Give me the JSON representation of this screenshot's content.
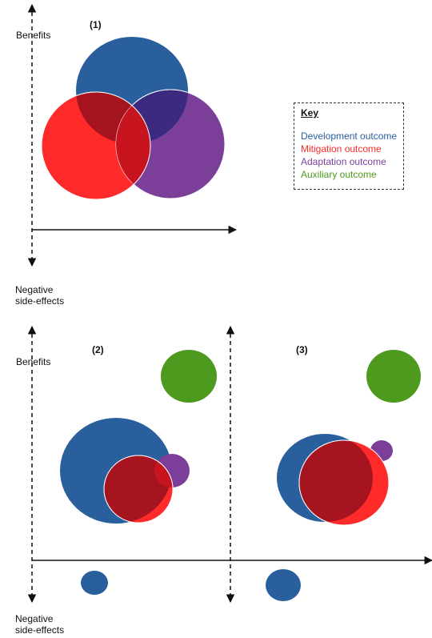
{
  "labels": {
    "benefits": "Benefits",
    "negative_line1": "Negative",
    "negative_line2": "side-effects"
  },
  "panels": {
    "p1": "(1)",
    "p2": "(2)",
    "p3": "(3)"
  },
  "key": {
    "title": "Key",
    "items": [
      {
        "label": "Development outcome",
        "color": "#2a5f9e"
      },
      {
        "label": "Mitigation outcome",
        "color": "#ff2a2a"
      },
      {
        "label": "Adaptation outcome",
        "color": "#7b3f99"
      },
      {
        "label": "Auxiliary outcome",
        "color": "#4e9a1f"
      }
    ]
  },
  "colors": {
    "development": "#2a5f9e",
    "mitigation": "#ff2a2a",
    "adaptation": "#7b3f99",
    "auxiliary": "#4e9a1f",
    "overlap_dev_mit": "#a5141f",
    "overlap_dev_ada": "#3b2a80",
    "axis": "#111111"
  }
}
